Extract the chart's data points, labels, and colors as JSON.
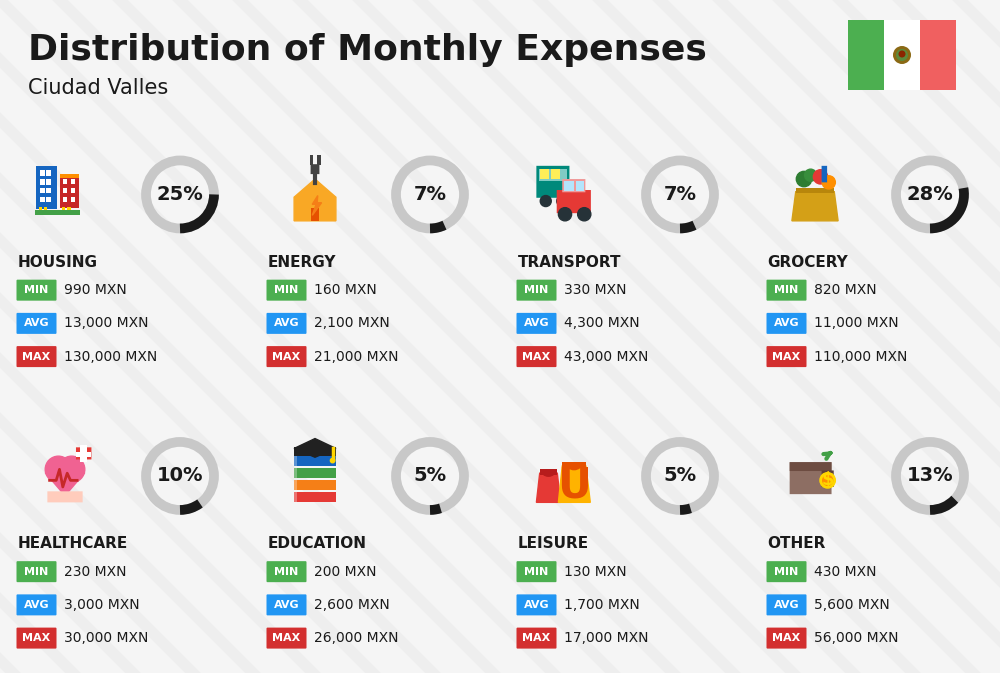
{
  "title": "Distribution of Monthly Expenses",
  "subtitle": "Ciudad Valles",
  "background_color": "#f5f5f5",
  "categories": [
    {
      "name": "HOUSING",
      "pct": 25,
      "min": "990 MXN",
      "avg": "13,000 MXN",
      "max": "130,000 MXN",
      "row": 0,
      "col": 0
    },
    {
      "name": "ENERGY",
      "pct": 7,
      "min": "160 MXN",
      "avg": "2,100 MXN",
      "max": "21,000 MXN",
      "row": 0,
      "col": 1
    },
    {
      "name": "TRANSPORT",
      "pct": 7,
      "min": "330 MXN",
      "avg": "4,300 MXN",
      "max": "43,000 MXN",
      "row": 0,
      "col": 2
    },
    {
      "name": "GROCERY",
      "pct": 28,
      "min": "820 MXN",
      "avg": "11,000 MXN",
      "max": "110,000 MXN",
      "row": 0,
      "col": 3
    },
    {
      "name": "HEALTHCARE",
      "pct": 10,
      "min": "230 MXN",
      "avg": "3,000 MXN",
      "max": "30,000 MXN",
      "row": 1,
      "col": 0
    },
    {
      "name": "EDUCATION",
      "pct": 5,
      "min": "200 MXN",
      "avg": "2,600 MXN",
      "max": "26,000 MXN",
      "row": 1,
      "col": 1
    },
    {
      "name": "LEISURE",
      "pct": 5,
      "min": "130 MXN",
      "avg": "1,700 MXN",
      "max": "17,000 MXN",
      "row": 1,
      "col": 2
    },
    {
      "name": "OTHER",
      "pct": 13,
      "min": "430 MXN",
      "avg": "5,600 MXN",
      "max": "56,000 MXN",
      "row": 1,
      "col": 3
    }
  ],
  "color_min": "#4CAF50",
  "color_avg": "#2196F3",
  "color_max": "#D32F2F",
  "donut_filled_color": "#1a1a1a",
  "donut_empty_color": "#C8C8C8",
  "text_color": "#1a1a1a",
  "stripe_color": "#e8e8e8",
  "flag_green": "#4CAF50",
  "flag_white": "#FFFFFF",
  "flag_red": "#F06060"
}
